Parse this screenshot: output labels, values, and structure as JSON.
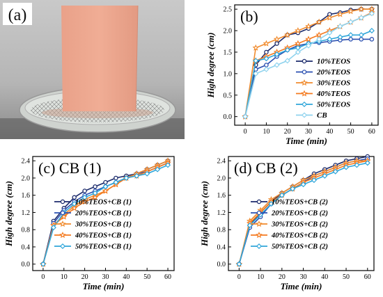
{
  "photo": {
    "label": "(a)"
  },
  "chart_data": [
    {
      "type": "line",
      "panel_label": "(b)",
      "xlabel": "Time (min)",
      "ylabel": "High degree (cm)",
      "xlim": [
        -5,
        63
      ],
      "ylim": [
        -0.2,
        2.6
      ],
      "xticks": [
        0,
        10,
        20,
        30,
        40,
        50,
        60
      ],
      "yticks": [
        0.0,
        0.5,
        1.0,
        1.5,
        2.0,
        2.5
      ],
      "legend_position": "bottom-right",
      "series": [
        {
          "name": "10%TEOS",
          "color": "#1b2a6b",
          "marker": "circle",
          "x": [
            0,
            5,
            10,
            15,
            20,
            25,
            30,
            35,
            40,
            45,
            50,
            55,
            60
          ],
          "y": [
            0,
            1.2,
            1.5,
            1.7,
            1.9,
            1.95,
            2.05,
            2.2,
            2.38,
            2.42,
            2.48,
            2.5,
            2.5
          ]
        },
        {
          "name": "20%TEOS",
          "color": "#2a4fb0",
          "marker": "circle",
          "x": [
            0,
            5,
            10,
            15,
            20,
            25,
            30,
            35,
            40,
            45,
            50,
            55,
            60
          ],
          "y": [
            0,
            1.1,
            1.2,
            1.4,
            1.55,
            1.65,
            1.7,
            1.72,
            1.75,
            1.78,
            1.8,
            1.8,
            1.8
          ]
        },
        {
          "name": "30%TEOS",
          "color": "#f08a2c",
          "marker": "star",
          "x": [
            0,
            5,
            10,
            15,
            20,
            25,
            30,
            35,
            40,
            45,
            50,
            55,
            60
          ],
          "y": [
            0,
            1.6,
            1.7,
            1.8,
            1.9,
            2.0,
            2.1,
            2.2,
            2.3,
            2.38,
            2.45,
            2.5,
            2.5
          ]
        },
        {
          "name": "40%TEOS",
          "color": "#f47a1f",
          "marker": "star",
          "x": [
            0,
            5,
            10,
            15,
            20,
            25,
            30,
            35,
            40,
            45,
            50,
            55,
            60
          ],
          "y": [
            0,
            1.3,
            1.4,
            1.5,
            1.6,
            1.7,
            1.8,
            1.9,
            2.0,
            2.1,
            2.2,
            2.3,
            2.42
          ]
        },
        {
          "name": "50%TEOS",
          "color": "#2fa6da",
          "marker": "diamond",
          "x": [
            0,
            5,
            10,
            15,
            20,
            25,
            30,
            35,
            40,
            45,
            50,
            55,
            60
          ],
          "y": [
            0,
            1.3,
            1.35,
            1.45,
            1.55,
            1.6,
            1.7,
            1.75,
            1.8,
            1.85,
            1.9,
            1.9,
            2.0
          ]
        },
        {
          "name": "CB",
          "color": "#8fd3ee",
          "marker": "diamond",
          "x": [
            0,
            5,
            10,
            15,
            20,
            25,
            30,
            35,
            40,
            45,
            50,
            55,
            60
          ],
          "y": [
            0,
            1.0,
            1.1,
            1.2,
            1.3,
            1.5,
            1.65,
            1.8,
            1.95,
            2.1,
            2.2,
            2.3,
            2.4
          ]
        }
      ]
    },
    {
      "type": "line",
      "panel_label": "(c) CB (1)",
      "xlabel": "Time (min)",
      "ylabel": "High degree (cm)",
      "xlim": [
        -5,
        63
      ],
      "ylim": [
        -0.15,
        2.5
      ],
      "xticks": [
        0,
        10,
        20,
        30,
        40,
        50,
        60
      ],
      "yticks": [
        0.0,
        0.4,
        0.8,
        1.2,
        1.6,
        2.0,
        2.4
      ],
      "legend_position": "bottom-right",
      "series": [
        {
          "name": "10%TEOS+CB (1)",
          "color": "#1b2a6b",
          "marker": "circle",
          "x": [
            0,
            5,
            10,
            15,
            20,
            25,
            30,
            35,
            40,
            45,
            50,
            55,
            60
          ],
          "y": [
            0,
            1.0,
            1.3,
            1.55,
            1.7,
            1.8,
            1.9,
            2.0,
            2.05,
            2.1,
            2.2,
            2.3,
            2.4
          ]
        },
        {
          "name": "20%TEOS+CB (1)",
          "color": "#2a4fb0",
          "marker": "circle",
          "x": [
            0,
            5,
            10,
            15,
            20,
            25,
            30,
            35,
            40,
            45,
            50,
            55,
            60
          ],
          "y": [
            0,
            0.95,
            1.25,
            1.45,
            1.6,
            1.7,
            1.8,
            1.9,
            2.0,
            2.1,
            2.15,
            2.25,
            2.35
          ]
        },
        {
          "name": "30%TEOS+CB (1)",
          "color": "#f08a2c",
          "marker": "star",
          "x": [
            0,
            5,
            10,
            15,
            20,
            25,
            30,
            35,
            40,
            45,
            50,
            55,
            60
          ],
          "y": [
            0,
            0.9,
            1.15,
            1.35,
            1.5,
            1.6,
            1.7,
            1.85,
            2.0,
            2.1,
            2.2,
            2.3,
            2.4
          ]
        },
        {
          "name": "40%TEOS+CB (1)",
          "color": "#f47a1f",
          "marker": "star",
          "x": [
            0,
            5,
            10,
            15,
            20,
            25,
            30,
            35,
            40,
            45,
            50,
            55,
            60
          ],
          "y": [
            0,
            0.9,
            1.1,
            1.3,
            1.45,
            1.55,
            1.7,
            1.85,
            2.0,
            2.05,
            2.15,
            2.25,
            2.35
          ]
        },
        {
          "name": "50%TEOS+CB (1)",
          "color": "#2fa6da",
          "marker": "diamond",
          "x": [
            0,
            5,
            10,
            15,
            20,
            25,
            30,
            35,
            40,
            45,
            50,
            55,
            60
          ],
          "y": [
            0,
            0.85,
            1.2,
            1.4,
            1.55,
            1.65,
            1.8,
            1.9,
            2.0,
            2.05,
            2.1,
            2.2,
            2.3
          ]
        }
      ]
    },
    {
      "type": "line",
      "panel_label": "(d) CB (2)",
      "xlabel": "Time (min)",
      "ylabel": "High degree (cm)",
      "xlim": [
        -5,
        63
      ],
      "ylim": [
        -0.15,
        2.5
      ],
      "xticks": [
        0,
        10,
        20,
        30,
        40,
        50,
        60
      ],
      "yticks": [
        0.0,
        0.4,
        0.8,
        1.2,
        1.6,
        2.0,
        2.4
      ],
      "legend_position": "bottom-right",
      "series": [
        {
          "name": "10%TEOS+CB (2)",
          "color": "#1b2a6b",
          "marker": "circle",
          "x": [
            0,
            5,
            10,
            15,
            20,
            25,
            30,
            35,
            40,
            45,
            50,
            55,
            60
          ],
          "y": [
            0,
            0.9,
            1.2,
            1.45,
            1.65,
            1.8,
            1.95,
            2.1,
            2.2,
            2.3,
            2.4,
            2.45,
            2.5
          ]
        },
        {
          "name": "20%TEOS+CB (2)",
          "color": "#2a4fb0",
          "marker": "circle",
          "x": [
            0,
            5,
            10,
            15,
            20,
            25,
            30,
            35,
            40,
            45,
            50,
            55,
            60
          ],
          "y": [
            0,
            0.85,
            1.1,
            1.4,
            1.6,
            1.75,
            1.9,
            2.05,
            2.15,
            2.25,
            2.35,
            2.4,
            2.45
          ]
        },
        {
          "name": "30%TEOS+CB (2)",
          "color": "#f08a2c",
          "marker": "star",
          "x": [
            0,
            5,
            10,
            15,
            20,
            25,
            30,
            35,
            40,
            45,
            50,
            55,
            60
          ],
          "y": [
            0,
            1.0,
            1.25,
            1.5,
            1.65,
            1.8,
            1.95,
            2.05,
            2.15,
            2.25,
            2.35,
            2.4,
            2.4
          ]
        },
        {
          "name": "40%TEOS+CB (2)",
          "color": "#f47a1f",
          "marker": "star",
          "x": [
            0,
            5,
            10,
            15,
            20,
            25,
            30,
            35,
            40,
            45,
            50,
            55,
            60
          ],
          "y": [
            0,
            0.95,
            1.2,
            1.45,
            1.6,
            1.75,
            1.9,
            2.0,
            2.1,
            2.2,
            2.3,
            2.35,
            2.4
          ]
        },
        {
          "name": "50%TEOS+CB (2)",
          "color": "#2fa6da",
          "marker": "diamond",
          "x": [
            0,
            5,
            10,
            15,
            20,
            25,
            30,
            35,
            40,
            45,
            50,
            55,
            60
          ],
          "y": [
            0,
            0.9,
            1.15,
            1.4,
            1.6,
            1.75,
            1.85,
            1.95,
            2.05,
            2.15,
            2.25,
            2.3,
            2.35
          ]
        }
      ]
    }
  ]
}
